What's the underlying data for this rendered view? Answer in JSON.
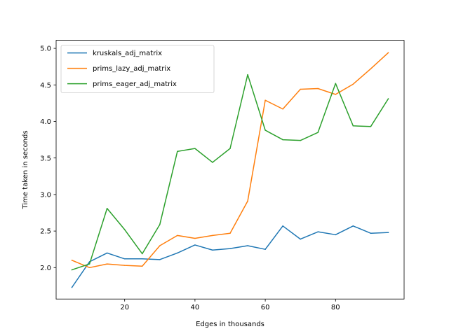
{
  "chart_data": {
    "type": "line",
    "xlabel": "Edges in thousands",
    "ylabel": "Time taken in seconds",
    "xlim": [
      0.5,
      99.5
    ],
    "ylim": [
      1.57,
      5.11
    ],
    "xticks": [
      20,
      40,
      60,
      80
    ],
    "yticks": [
      2.0,
      2.5,
      3.0,
      3.5,
      4.0,
      4.5,
      5.0
    ],
    "xtick_labels": [
      "20",
      "40",
      "60",
      "80"
    ],
    "ytick_labels": [
      "2.0",
      "2.5",
      "3.0",
      "3.5",
      "4.0",
      "4.5",
      "5.0"
    ],
    "legend_position": "top-left",
    "x": [
      5,
      10,
      15,
      20,
      25,
      30,
      35,
      40,
      45,
      50,
      55,
      60,
      65,
      70,
      75,
      80,
      85,
      90,
      95
    ],
    "series": [
      {
        "name": "kruskals_adj_matrix",
        "color": "#1f77b4",
        "values": [
          1.73,
          2.08,
          2.2,
          2.12,
          2.12,
          2.11,
          2.2,
          2.31,
          2.24,
          2.26,
          2.3,
          2.25,
          2.57,
          2.39,
          2.49,
          2.45,
          2.57,
          2.47,
          2.48
        ]
      },
      {
        "name": "prims_lazy_adj_matrix",
        "color": "#ff7f0e",
        "values": [
          2.1,
          2.0,
          2.05,
          2.03,
          2.02,
          2.3,
          2.44,
          2.4,
          2.44,
          2.47,
          2.91,
          4.29,
          4.17,
          4.44,
          4.45,
          4.37,
          4.51,
          4.72,
          4.94
        ]
      },
      {
        "name": "prims_eager_adj_matrix",
        "color": "#2ca02c",
        "values": [
          1.97,
          2.05,
          2.81,
          2.52,
          2.19,
          2.59,
          3.59,
          3.63,
          3.44,
          3.63,
          4.64,
          3.88,
          3.75,
          3.74,
          3.85,
          4.52,
          3.94,
          3.93,
          4.31
        ]
      }
    ]
  }
}
